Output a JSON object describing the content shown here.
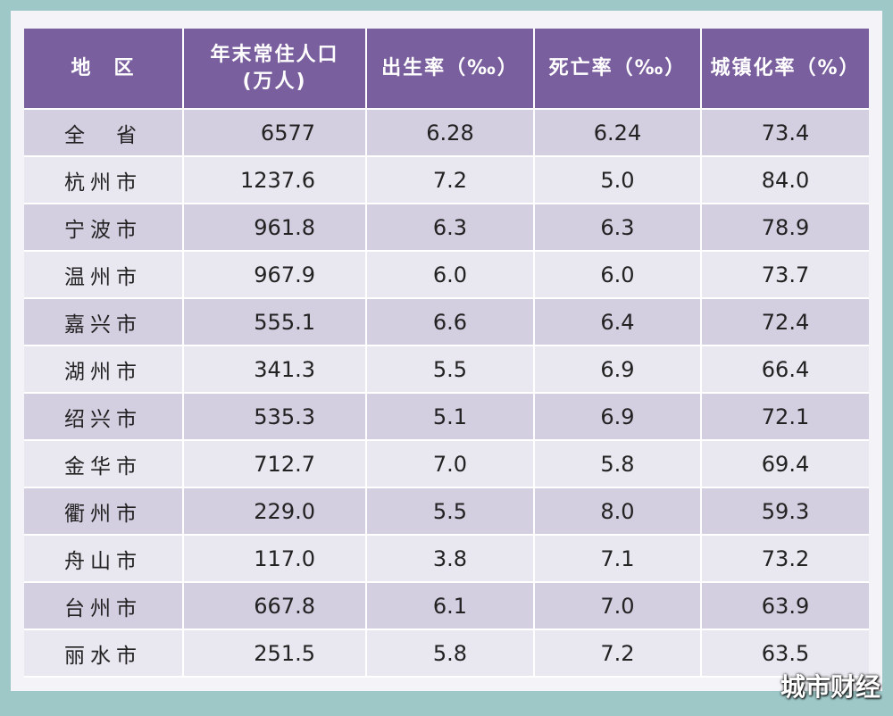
{
  "table": {
    "headers": [
      "地　区",
      "年末常住人口\n(万人)",
      "出生率（‰）",
      "死亡率（‰）",
      "城镇化率（%）"
    ],
    "rows": [
      [
        "全　省",
        "6577",
        "6.28",
        "6.24",
        "73.4"
      ],
      [
        "杭州市",
        "1237.6",
        "7.2",
        "5.0",
        "84.0"
      ],
      [
        "宁波市",
        "961.8",
        "6.3",
        "6.3",
        "78.9"
      ],
      [
        "温州市",
        "967.9",
        "6.0",
        "6.0",
        "73.7"
      ],
      [
        "嘉兴市",
        "555.1",
        "6.6",
        "6.4",
        "72.4"
      ],
      [
        "湖州市",
        "341.3",
        "5.5",
        "6.9",
        "66.4"
      ],
      [
        "绍兴市",
        "535.3",
        "5.1",
        "6.9",
        "72.1"
      ],
      [
        "金华市",
        "712.7",
        "7.0",
        "5.8",
        "69.4"
      ],
      [
        "衢州市",
        "229.0",
        "5.5",
        "8.0",
        "59.3"
      ],
      [
        "舟山市",
        "117.0",
        "3.8",
        "7.1",
        "73.2"
      ],
      [
        "台州市",
        "667.8",
        "6.1",
        "7.0",
        "63.9"
      ],
      [
        "丽水市",
        "251.5",
        "5.8",
        "7.2",
        "63.5"
      ]
    ]
  },
  "watermark": "城市财经",
  "colors": {
    "header_bg": "#7a5f9e",
    "row_odd": "#d3cee0",
    "row_even": "#e9e7f0",
    "frame": "#9ec8c8"
  }
}
